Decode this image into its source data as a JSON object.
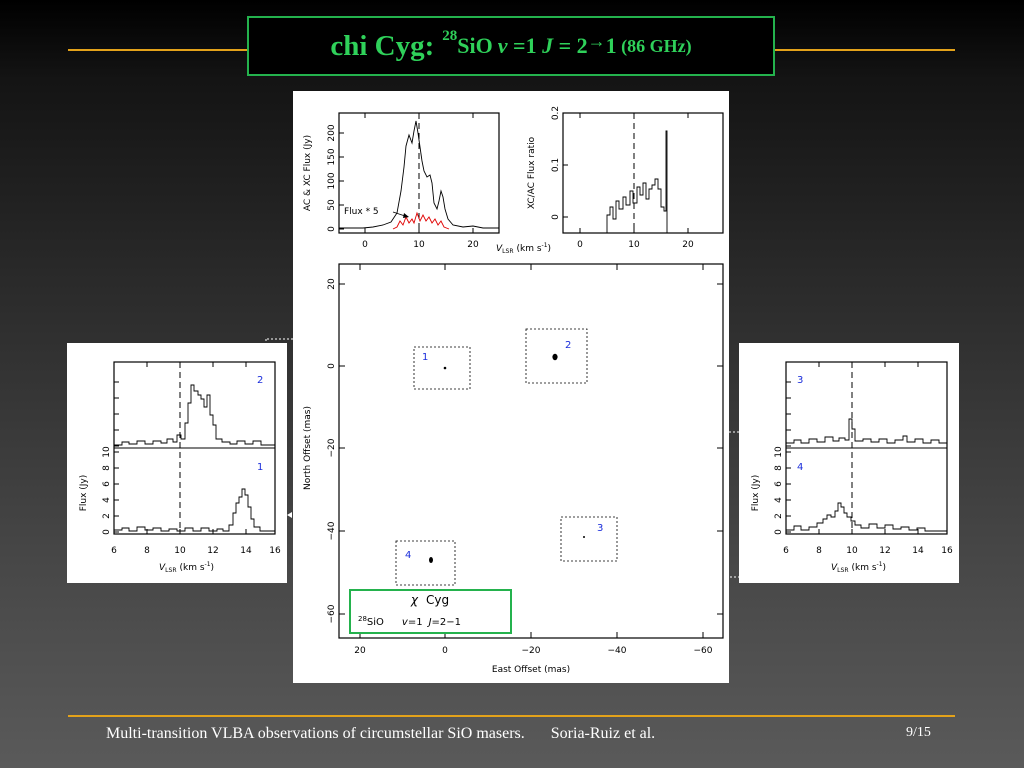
{
  "slide": {
    "title": {
      "star": "chi Cyg:",
      "isotope_mass": "28",
      "molecule": "SiO",
      "v_sym": "v",
      "v_val": " =1 ",
      "j_sym": "J",
      "j_from": " = 2",
      "arrow": "→",
      "j_to": "1",
      "freq": " (86 GHz)"
    },
    "footer": {
      "left": "Multi-transition VLBA observations of circumstellar SiO masers.",
      "author": "Soria-Ruiz et al.",
      "page": "9/15"
    }
  },
  "spectra_top": {
    "flux_plot": {
      "ylabel": "AC & XC Flux (Jy)",
      "yticks": [
        "0",
        "50",
        "100",
        "150",
        "200"
      ],
      "xticks": [
        "0",
        "10",
        "20"
      ],
      "annotation": "Flux * 5"
    },
    "ratio_plot": {
      "ylabel": "XC/AC Flux ratio",
      "yticks": [
        "0",
        "0.1",
        "0.2"
      ],
      "xticks": [
        "0",
        "10",
        "20"
      ]
    },
    "xlabel_v": "V",
    "xlabel_sub": "LSR",
    "xlabel_unit": "(km  s",
    "xlabel_exp": "-1",
    "xlabel_close": ")"
  },
  "map": {
    "xlabel": "East Offset (mas)",
    "ylabel": "North Offset (mas)",
    "xticks": [
      "20",
      "0",
      "−20",
      "−40",
      "−60"
    ],
    "yticks": [
      "20",
      "0",
      "−20",
      "−40",
      "−60"
    ],
    "spots": [
      "1",
      "2",
      "3",
      "4"
    ],
    "legend": {
      "chi": "χ",
      "star": "Cyg",
      "mass": "28",
      "mol": "SiO",
      "v": "v",
      "v_eq": "=1",
      "j": "J",
      "j_eq": "=2−1"
    }
  },
  "spectra_left": {
    "spot_top": "2",
    "spot_bottom": "1",
    "ylabel": "Flux (Jy)",
    "yticks": [
      "0",
      "2",
      "4",
      "6",
      "8",
      "10"
    ],
    "xticks": [
      "6",
      "8",
      "10",
      "12",
      "14",
      "16"
    ]
  },
  "spectra_right": {
    "spot_top": "3",
    "spot_bottom": "4",
    "ylabel": "Flux (Jy)",
    "yticks": [
      "0",
      "2",
      "4",
      "6",
      "8",
      "10"
    ],
    "xticks": [
      "6",
      "8",
      "10",
      "12",
      "14",
      "16"
    ]
  }
}
